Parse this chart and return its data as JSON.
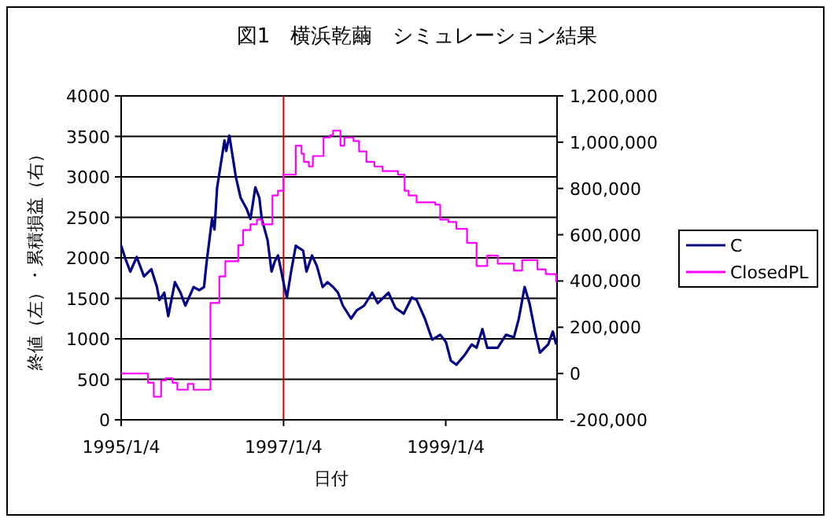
{
  "chart_data": {
    "type": "line",
    "title": "図1　横浜乾繭　シミュレーション結果",
    "xlabel": "日付",
    "ylabel": "終値（左）・累積損益（右）",
    "xlim": [
      "1995-01-04",
      "2000-05-19"
    ],
    "xticks": [
      {
        "value": "1995-01-04",
        "label": "1995/1/4"
      },
      {
        "value": "1997-01-04",
        "label": "1997/1/4"
      },
      {
        "value": "1999-01-04",
        "label": "1999/1/4"
      }
    ],
    "ylim": [
      0,
      4000
    ],
    "yticks": [
      0,
      500,
      1000,
      1500,
      2000,
      2500,
      3000,
      3500,
      4000
    ],
    "y2lim": [
      -200000,
      1200000
    ],
    "y2ticks": [
      {
        "value": -200000,
        "label": "-200,000"
      },
      {
        "value": 0,
        "label": "0"
      },
      {
        "value": 200000,
        "label": "200,000"
      },
      {
        "value": 400000,
        "label": "400,000"
      },
      {
        "value": 600000,
        "label": "600,000"
      },
      {
        "value": 800000,
        "label": "800,000"
      },
      {
        "value": 1000000,
        "label": "1,000,000"
      },
      {
        "value": 1200000,
        "label": "1,200,000"
      }
    ],
    "grid": "y",
    "legend": "right",
    "ref_lines": [
      {
        "axis": "x",
        "value": "1997-01-04",
        "color": "#cc0000"
      }
    ],
    "series": [
      {
        "name": "C",
        "color": "#000080",
        "x": [
          "1995-01-04",
          "1995-01-23",
          "1995-02-14",
          "1995-03-15",
          "1995-04-17",
          "1995-05-20",
          "1995-06-14",
          "1995-06-25",
          "1995-07-17",
          "1995-08-04",
          "1995-09-03",
          "1995-09-28",
          "1995-10-20",
          "1995-11-26",
          "1995-12-21",
          "1996-01-12",
          "1996-01-23",
          "1996-02-17",
          "1996-02-28",
          "1996-03-11",
          "1996-03-22",
          "1996-04-13",
          "1996-04-21",
          "1996-05-05",
          "1996-05-20",
          "1996-06-03",
          "1996-06-14",
          "1996-06-25",
          "1996-07-21",
          "1996-08-08",
          "1996-08-30",
          "1996-09-17",
          "1996-09-28",
          "1996-10-24",
          "1996-11-11",
          "1996-11-26",
          "1996-12-10",
          "1996-12-25",
          "1997-01-08",
          "1997-01-19",
          "1997-02-07",
          "1997-02-28",
          "1997-04-02",
          "1997-04-17",
          "1997-05-12",
          "1997-06-03",
          "1997-06-29",
          "1997-07-21",
          "1997-08-15",
          "1997-09-06",
          "1997-09-28",
          "1997-11-04",
          "1997-11-29",
          "1998-01-02",
          "1998-02-07",
          "1998-03-04",
          "1998-04-21",
          "1998-05-23",
          "1998-06-29",
          "1998-08-04",
          "1998-08-26",
          "1998-10-02",
          "1998-11-04",
          "1998-12-10",
          "1999-01-05",
          "1999-01-27",
          "1999-02-21",
          "1999-03-30",
          "1999-05-01",
          "1999-05-23",
          "1999-06-18",
          "1999-07-10",
          "1999-08-26",
          "1999-10-02",
          "1999-11-07",
          "1999-11-29",
          "1999-12-25",
          "2000-01-16",
          "2000-02-10",
          "2000-03-03",
          "2000-04-09",
          "2000-04-30",
          "2000-05-15"
        ],
        "values": [
          2150,
          1990,
          1830,
          2010,
          1770,
          1860,
          1640,
          1480,
          1570,
          1280,
          1700,
          1570,
          1410,
          1640,
          1600,
          1640,
          1930,
          2480,
          2350,
          2870,
          3060,
          3450,
          3320,
          3510,
          3250,
          3000,
          2870,
          2740,
          2610,
          2480,
          2870,
          2740,
          2480,
          2220,
          1830,
          1960,
          2030,
          1830,
          1640,
          1510,
          1830,
          2150,
          2090,
          1830,
          2030,
          1900,
          1640,
          1700,
          1640,
          1570,
          1410,
          1250,
          1350,
          1410,
          1570,
          1440,
          1570,
          1380,
          1310,
          1510,
          1480,
          1250,
          990,
          1050,
          960,
          730,
          680,
          800,
          930,
          890,
          1120,
          890,
          890,
          1050,
          1020,
          1250,
          1640,
          1440,
          1090,
          830,
          930,
          1090,
          930
        ]
      },
      {
        "name": "ClosedPL",
        "type": "step",
        "axis": "y2",
        "color": "#ff00ff",
        "x": [
          "1995-01-04",
          "1995-05-05",
          "1995-05-31",
          "1995-07-03",
          "1995-07-24",
          "1995-08-23",
          "1995-09-14",
          "1995-10-31",
          "1995-11-26",
          "1996-02-10",
          "1996-03-21",
          "1996-04-17",
          "1996-06-14",
          "1996-07-06",
          "1996-08-08",
          "1996-09-06",
          "1996-09-28",
          "1996-11-15",
          "1996-12-10",
          "1997-01-04",
          "1997-02-28",
          "1997-03-26",
          "1997-04-06",
          "1997-04-28",
          "1997-05-16",
          "1997-07-03",
          "1997-08-01",
          "1997-08-15",
          "1997-09-17",
          "1997-10-05",
          "1997-11-15",
          "1997-12-10",
          "1998-01-12",
          "1998-02-17",
          "1998-03-26",
          "1998-06-03",
          "1998-07-03",
          "1998-07-21",
          "1998-08-26",
          "1998-11-18",
          "1998-12-10",
          "1999-01-16",
          "1999-02-21",
          "1999-04-10",
          "1999-05-23",
          "1999-07-10",
          "1999-08-26",
          "1999-11-07",
          "1999-12-14",
          "2000-01-16",
          "2000-02-21",
          "2000-03-29",
          "2000-05-15"
        ],
        "values": [
          0,
          -40000,
          -100000,
          -30000,
          -20000,
          -40000,
          -70000,
          -45000,
          -70000,
          305000,
          420000,
          485000,
          555000,
          620000,
          645000,
          665000,
          645000,
          770000,
          790000,
          860000,
          985000,
          950000,
          915000,
          895000,
          940000,
          1020000,
          1030000,
          1050000,
          985000,
          1020000,
          1005000,
          960000,
          915000,
          895000,
          875000,
          860000,
          790000,
          770000,
          740000,
          730000,
          665000,
          655000,
          625000,
          565000,
          465000,
          510000,
          475000,
          445000,
          490000,
          490000,
          450000,
          430000,
          395000
        ]
      }
    ]
  }
}
